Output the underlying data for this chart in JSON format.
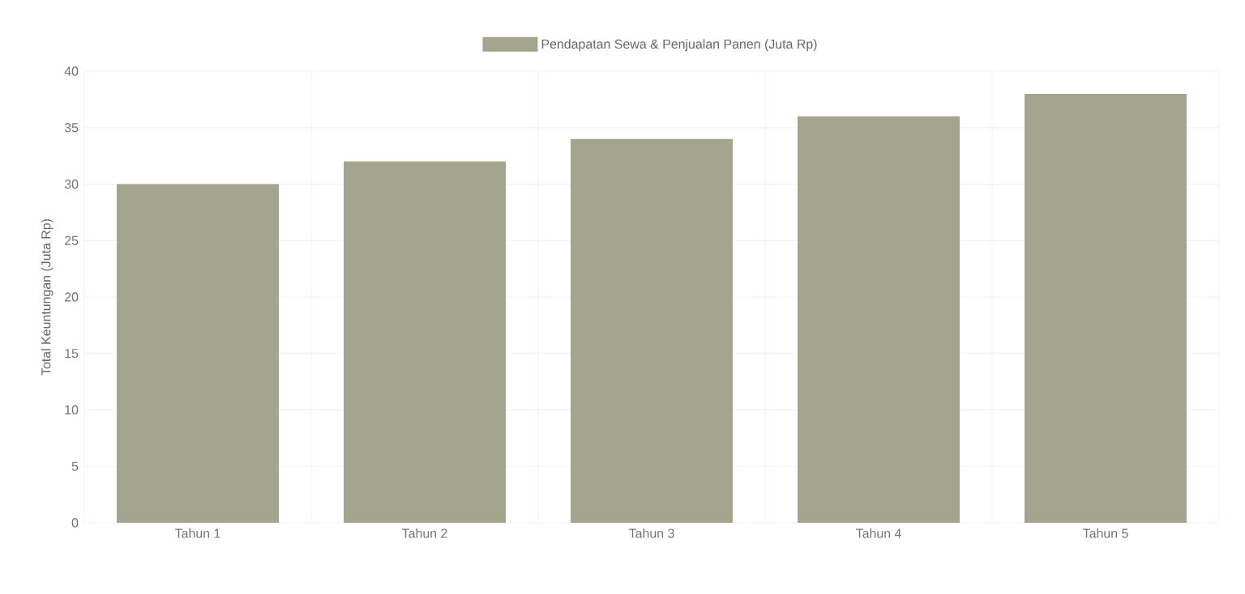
{
  "chart_data": {
    "type": "bar",
    "ylabel": "Total Keuntungan (Juta Rp)",
    "categories": [
      "Tahun 1",
      "Tahun 2",
      "Tahun 3",
      "Tahun 4",
      "Tahun 5"
    ],
    "series": [
      {
        "name": "Pendapatan Sewa & Penjualan Panen (Juta Rp)",
        "color": "#a3a58e",
        "values": [
          30,
          32,
          34,
          36,
          38
        ]
      }
    ],
    "ylim": [
      0,
      40
    ],
    "yticks": [
      0,
      5,
      10,
      15,
      20,
      25,
      30,
      35,
      40
    ],
    "grid": true,
    "legend": "top"
  }
}
